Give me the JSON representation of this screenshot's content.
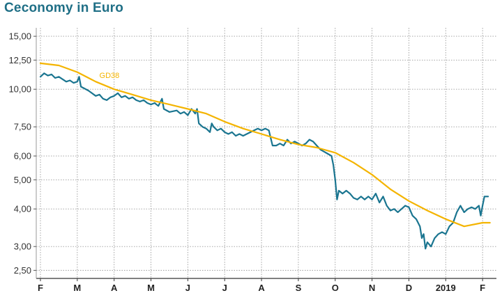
{
  "title": "Ceconomy in Euro",
  "colors": {
    "price": "#1a7590",
    "average": "#f4b400",
    "grid": "#9a9a9a",
    "title": "#1f6f86"
  },
  "chart_data": {
    "type": "line",
    "title": "Ceconomy in Euro",
    "y_scale": "log",
    "ylim": [
      2.35,
      16.0
    ],
    "y_ticks": [
      15.0,
      12.5,
      10.0,
      7.5,
      6.0,
      5.0,
      4.0,
      3.0,
      2.5
    ],
    "y_tick_labels": [
      "15,00",
      "12,50",
      "10,00",
      "7,50",
      "6,00",
      "5,00",
      "4,00",
      "3,00",
      "2,50"
    ],
    "xlim": [
      0,
      12.3
    ],
    "x_ticks": [
      0,
      1,
      2,
      3,
      4,
      5,
      6,
      7,
      8,
      9,
      10,
      11,
      12
    ],
    "x_tick_labels": [
      "F",
      "M",
      "A",
      "M",
      "J",
      "J",
      "A",
      "S",
      "O",
      "N",
      "D",
      "2019",
      "F"
    ],
    "grid": true,
    "series": [
      {
        "name": "",
        "style": "price",
        "points": [
          [
            0.0,
            11.0
          ],
          [
            0.1,
            11.3
          ],
          [
            0.2,
            11.1
          ],
          [
            0.3,
            11.2
          ],
          [
            0.4,
            10.9
          ],
          [
            0.5,
            11.0
          ],
          [
            0.6,
            10.8
          ],
          [
            0.7,
            10.6
          ],
          [
            0.8,
            10.7
          ],
          [
            0.9,
            10.5
          ],
          [
            1.0,
            10.6
          ],
          [
            1.05,
            11.0
          ],
          [
            1.1,
            10.2
          ],
          [
            1.3,
            9.9
          ],
          [
            1.5,
            9.5
          ],
          [
            1.6,
            9.6
          ],
          [
            1.7,
            9.3
          ],
          [
            1.8,
            9.2
          ],
          [
            1.9,
            9.4
          ],
          [
            2.0,
            9.5
          ],
          [
            2.1,
            9.7
          ],
          [
            2.2,
            9.4
          ],
          [
            2.3,
            9.5
          ],
          [
            2.4,
            9.3
          ],
          [
            2.5,
            9.4
          ],
          [
            2.6,
            9.2
          ],
          [
            2.7,
            9.1
          ],
          [
            2.8,
            9.2
          ],
          [
            2.9,
            9.0
          ],
          [
            3.0,
            8.9
          ],
          [
            3.1,
            9.0
          ],
          [
            3.2,
            8.8
          ],
          [
            3.3,
            9.3
          ],
          [
            3.35,
            8.6
          ],
          [
            3.5,
            8.4
          ],
          [
            3.7,
            8.5
          ],
          [
            3.8,
            8.3
          ],
          [
            3.9,
            8.4
          ],
          [
            4.0,
            8.2
          ],
          [
            4.1,
            8.6
          ],
          [
            4.2,
            8.3
          ],
          [
            4.25,
            8.6
          ],
          [
            4.3,
            7.7
          ],
          [
            4.4,
            7.5
          ],
          [
            4.5,
            7.4
          ],
          [
            4.6,
            7.2
          ],
          [
            4.65,
            7.7
          ],
          [
            4.7,
            7.5
          ],
          [
            4.8,
            7.3
          ],
          [
            4.9,
            7.4
          ],
          [
            5.0,
            7.2
          ],
          [
            5.1,
            7.1
          ],
          [
            5.2,
            7.2
          ],
          [
            5.3,
            7.0
          ],
          [
            5.4,
            7.1
          ],
          [
            5.5,
            7.0
          ],
          [
            5.6,
            7.1
          ],
          [
            5.7,
            7.2
          ],
          [
            5.8,
            7.3
          ],
          [
            5.9,
            7.4
          ],
          [
            6.0,
            7.3
          ],
          [
            6.1,
            7.4
          ],
          [
            6.2,
            7.3
          ],
          [
            6.3,
            6.5
          ],
          [
            6.4,
            6.5
          ],
          [
            6.5,
            6.6
          ],
          [
            6.6,
            6.5
          ],
          [
            6.7,
            6.8
          ],
          [
            6.8,
            6.6
          ],
          [
            6.9,
            6.7
          ],
          [
            7.0,
            6.6
          ],
          [
            7.1,
            6.5
          ],
          [
            7.2,
            6.6
          ],
          [
            7.3,
            6.8
          ],
          [
            7.4,
            6.7
          ],
          [
            7.5,
            6.5
          ],
          [
            7.6,
            6.3
          ],
          [
            7.7,
            6.2
          ],
          [
            7.8,
            6.1
          ],
          [
            7.9,
            6.0
          ],
          [
            7.95,
            5.6
          ],
          [
            8.0,
            5.0
          ],
          [
            8.05,
            4.3
          ],
          [
            8.1,
            4.6
          ],
          [
            8.2,
            4.5
          ],
          [
            8.3,
            4.6
          ],
          [
            8.4,
            4.5
          ],
          [
            8.5,
            4.35
          ],
          [
            8.6,
            4.3
          ],
          [
            8.7,
            4.4
          ],
          [
            8.8,
            4.3
          ],
          [
            8.9,
            4.4
          ],
          [
            9.0,
            4.3
          ],
          [
            9.1,
            4.5
          ],
          [
            9.2,
            4.2
          ],
          [
            9.3,
            4.4
          ],
          [
            9.4,
            4.1
          ],
          [
            9.5,
            3.95
          ],
          [
            9.6,
            4.0
          ],
          [
            9.7,
            3.9
          ],
          [
            9.8,
            4.0
          ],
          [
            9.9,
            4.1
          ],
          [
            10.0,
            4.05
          ],
          [
            10.1,
            3.8
          ],
          [
            10.2,
            3.7
          ],
          [
            10.3,
            3.5
          ],
          [
            10.35,
            3.2
          ],
          [
            10.4,
            3.3
          ],
          [
            10.45,
            2.95
          ],
          [
            10.5,
            3.1
          ],
          [
            10.6,
            3.0
          ],
          [
            10.7,
            3.2
          ],
          [
            10.8,
            3.3
          ],
          [
            10.9,
            3.35
          ],
          [
            11.0,
            3.3
          ],
          [
            11.1,
            3.5
          ],
          [
            11.2,
            3.6
          ],
          [
            11.3,
            3.9
          ],
          [
            11.4,
            4.1
          ],
          [
            11.5,
            3.9
          ],
          [
            11.6,
            4.0
          ],
          [
            11.7,
            4.05
          ],
          [
            11.8,
            4.0
          ],
          [
            11.9,
            4.1
          ],
          [
            11.95,
            3.8
          ],
          [
            12.0,
            4.1
          ],
          [
            12.05,
            4.4
          ],
          [
            12.15,
            4.4
          ]
        ]
      },
      {
        "name": "GD38",
        "style": "average",
        "points": [
          [
            0.0,
            12.2
          ],
          [
            0.5,
            12.0
          ],
          [
            1.0,
            11.4
          ],
          [
            1.5,
            10.6
          ],
          [
            2.0,
            10.0
          ],
          [
            2.5,
            9.6
          ],
          [
            3.0,
            9.2
          ],
          [
            3.5,
            8.9
          ],
          [
            4.0,
            8.6
          ],
          [
            4.5,
            8.3
          ],
          [
            5.0,
            7.8
          ],
          [
            5.5,
            7.4
          ],
          [
            6.0,
            7.1
          ],
          [
            6.5,
            6.8
          ],
          [
            7.0,
            6.55
          ],
          [
            7.5,
            6.4
          ],
          [
            8.0,
            6.15
          ],
          [
            8.5,
            5.7
          ],
          [
            9.0,
            5.2
          ],
          [
            9.5,
            4.65
          ],
          [
            10.0,
            4.25
          ],
          [
            10.5,
            3.95
          ],
          [
            11.0,
            3.7
          ],
          [
            11.5,
            3.5
          ],
          [
            12.0,
            3.6
          ],
          [
            12.2,
            3.6
          ]
        ]
      }
    ],
    "annotations": [
      "GD38"
    ]
  }
}
